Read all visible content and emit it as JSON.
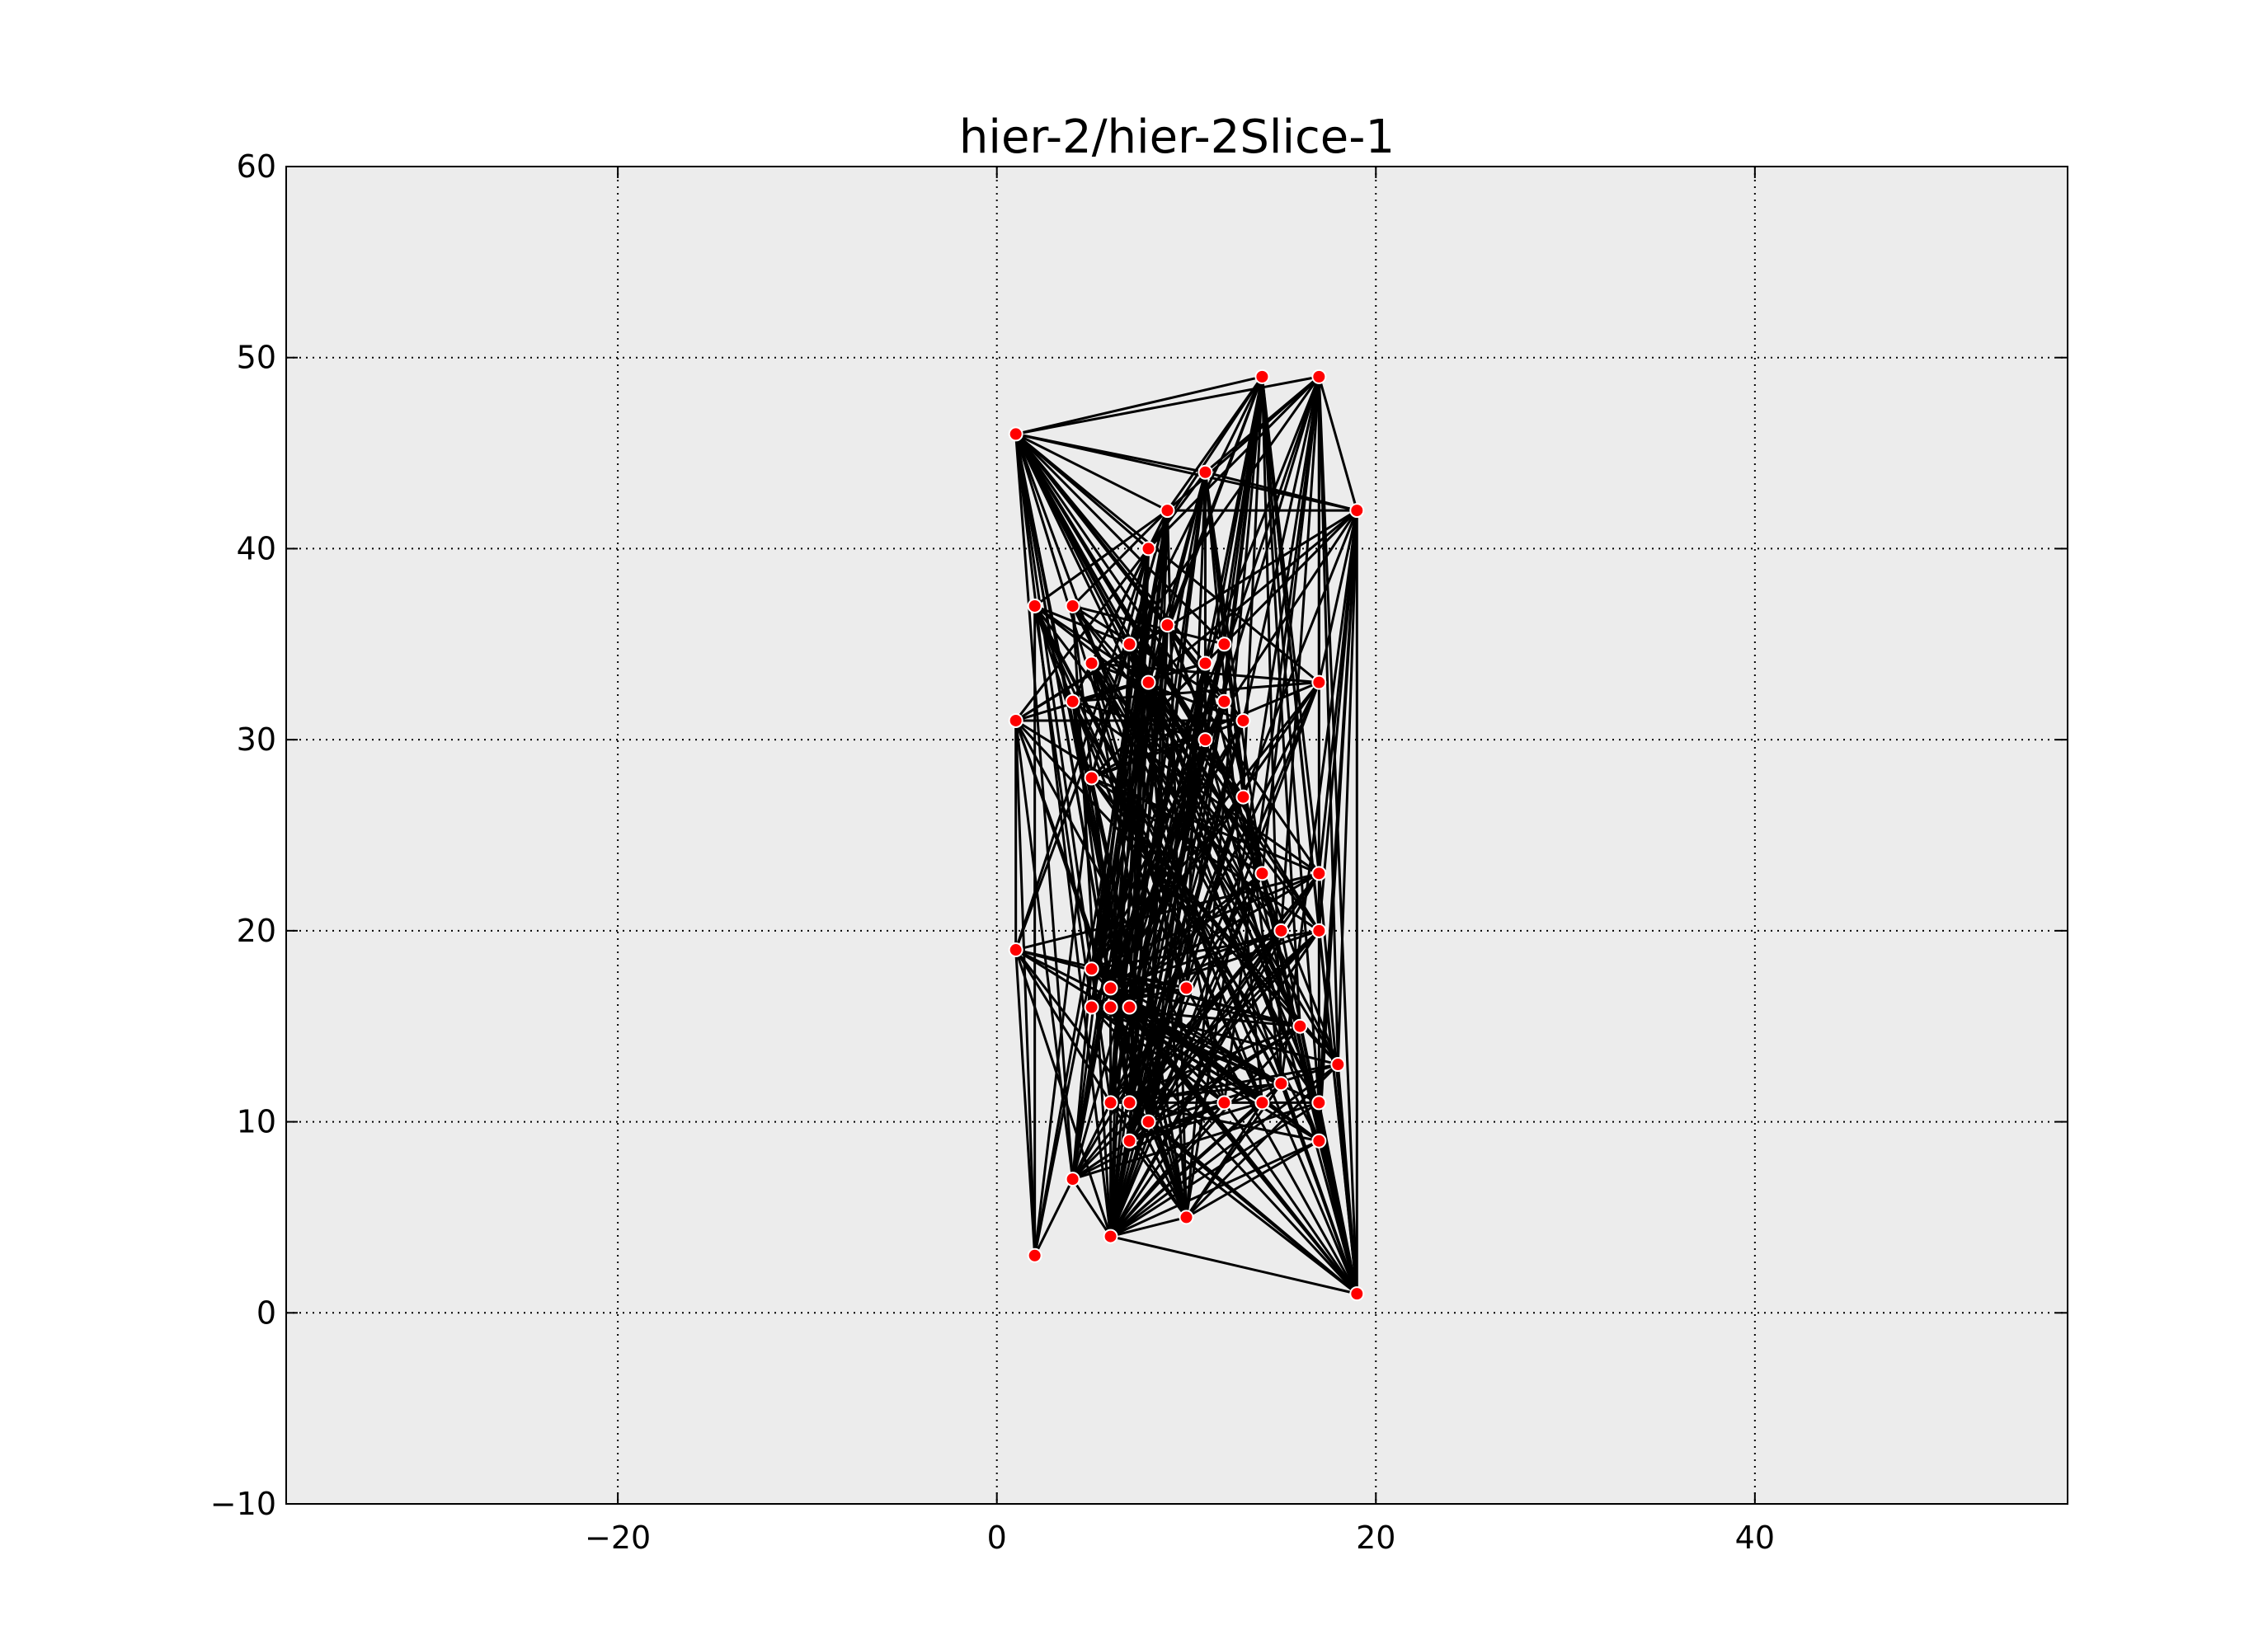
{
  "chart_data": {
    "type": "scatter",
    "title": "hier-2/hier-2Slice-1",
    "xlabel": "",
    "ylabel": "",
    "xlim": [
      -37.5,
      56.5
    ],
    "ylim": [
      -10,
      60
    ],
    "xticks": [
      -20,
      0,
      20,
      40
    ],
    "yticks": [
      -10,
      0,
      10,
      20,
      30,
      40,
      50,
      60
    ],
    "xtick_labels": [
      "−20",
      "0",
      "20",
      "40"
    ],
    "ytick_labels": [
      "−10",
      "0",
      "10",
      "20",
      "30",
      "40",
      "50",
      "60"
    ],
    "grid": true,
    "colors": {
      "background": "#ececec",
      "node": "#ff0000",
      "node_edge": "#ffffff",
      "edge": "#000000"
    },
    "points": [
      {
        "x": 14,
        "y": 49
      },
      {
        "x": 17,
        "y": 49
      },
      {
        "x": 1,
        "y": 46
      },
      {
        "x": 11,
        "y": 44
      },
      {
        "x": 9,
        "y": 42
      },
      {
        "x": 19,
        "y": 42
      },
      {
        "x": 8,
        "y": 40
      },
      {
        "x": 2,
        "y": 37
      },
      {
        "x": 4,
        "y": 37
      },
      {
        "x": 9,
        "y": 36
      },
      {
        "x": 7,
        "y": 35
      },
      {
        "x": 12,
        "y": 35
      },
      {
        "x": 5,
        "y": 34
      },
      {
        "x": 11,
        "y": 34
      },
      {
        "x": 8,
        "y": 33
      },
      {
        "x": 17,
        "y": 33
      },
      {
        "x": 4,
        "y": 32
      },
      {
        "x": 12,
        "y": 32
      },
      {
        "x": 1,
        "y": 31
      },
      {
        "x": 13,
        "y": 31
      },
      {
        "x": 11,
        "y": 30
      },
      {
        "x": 5,
        "y": 28
      },
      {
        "x": 13,
        "y": 27
      },
      {
        "x": 14,
        "y": 23
      },
      {
        "x": 17,
        "y": 23
      },
      {
        "x": 15,
        "y": 20
      },
      {
        "x": 17,
        "y": 20
      },
      {
        "x": 1,
        "y": 19
      },
      {
        "x": 5,
        "y": 18
      },
      {
        "x": 6,
        "y": 17
      },
      {
        "x": 10,
        "y": 17
      },
      {
        "x": 5,
        "y": 16
      },
      {
        "x": 6,
        "y": 16
      },
      {
        "x": 7,
        "y": 16
      },
      {
        "x": 16,
        "y": 15
      },
      {
        "x": 18,
        "y": 13
      },
      {
        "x": 15,
        "y": 12
      },
      {
        "x": 6,
        "y": 11
      },
      {
        "x": 7,
        "y": 11
      },
      {
        "x": 12,
        "y": 11
      },
      {
        "x": 14,
        "y": 11
      },
      {
        "x": 17,
        "y": 11
      },
      {
        "x": 8,
        "y": 10
      },
      {
        "x": 7,
        "y": 9
      },
      {
        "x": 17,
        "y": 9
      },
      {
        "x": 4,
        "y": 7
      },
      {
        "x": 10,
        "y": 5
      },
      {
        "x": 6,
        "y": 4
      },
      {
        "x": 2,
        "y": 3
      },
      {
        "x": 19,
        "y": 1
      }
    ],
    "edges": [
      [
        2,
        0
      ],
      [
        2,
        1
      ],
      [
        2,
        5
      ],
      [
        2,
        3
      ],
      [
        2,
        4
      ],
      [
        2,
        6
      ],
      [
        2,
        9
      ],
      [
        2,
        10
      ],
      [
        2,
        11
      ],
      [
        2,
        13
      ],
      [
        2,
        14
      ],
      [
        2,
        15
      ],
      [
        2,
        17
      ],
      [
        2,
        19
      ],
      [
        2,
        20
      ],
      [
        2,
        22
      ],
      [
        2,
        23
      ],
      [
        2,
        24
      ],
      [
        2,
        25
      ],
      [
        2,
        26
      ],
      [
        2,
        29
      ],
      [
        2,
        30
      ],
      [
        2,
        33
      ],
      [
        2,
        34
      ],
      [
        2,
        35
      ],
      [
        2,
        37
      ],
      [
        2,
        38
      ],
      [
        2,
        40
      ],
      [
        2,
        42
      ],
      [
        2,
        45
      ],
      [
        2,
        47
      ],
      [
        0,
        4
      ],
      [
        0,
        6
      ],
      [
        0,
        9
      ],
      [
        0,
        11
      ],
      [
        0,
        14
      ],
      [
        0,
        17
      ],
      [
        0,
        20
      ],
      [
        0,
        22
      ],
      [
        0,
        24
      ],
      [
        0,
        26
      ],
      [
        0,
        30
      ],
      [
        0,
        34
      ],
      [
        0,
        36
      ],
      [
        0,
        38
      ],
      [
        0,
        41
      ],
      [
        0,
        46
      ],
      [
        0,
        49
      ],
      [
        0,
        10
      ],
      [
        0,
        13
      ],
      [
        1,
        4
      ],
      [
        1,
        5
      ],
      [
        1,
        10
      ],
      [
        1,
        13
      ],
      [
        1,
        15
      ],
      [
        1,
        19
      ],
      [
        1,
        23
      ],
      [
        1,
        25
      ],
      [
        1,
        29
      ],
      [
        1,
        33
      ],
      [
        1,
        35
      ],
      [
        1,
        39
      ],
      [
        1,
        44
      ],
      [
        1,
        46
      ],
      [
        1,
        49
      ],
      [
        1,
        3
      ],
      [
        1,
        6
      ],
      [
        5,
        3
      ],
      [
        5,
        4
      ],
      [
        5,
        11
      ],
      [
        5,
        15
      ],
      [
        5,
        20
      ],
      [
        5,
        24
      ],
      [
        5,
        26
      ],
      [
        5,
        35
      ],
      [
        5,
        41
      ],
      [
        5,
        44
      ],
      [
        5,
        49
      ],
      [
        5,
        14
      ],
      [
        5,
        22
      ],
      [
        5,
        36
      ],
      [
        5,
        18
      ],
      [
        3,
        6
      ],
      [
        3,
        9
      ],
      [
        3,
        14
      ],
      [
        3,
        20
      ],
      [
        3,
        22
      ],
      [
        3,
        23
      ],
      [
        3,
        30
      ],
      [
        3,
        33
      ],
      [
        3,
        36
      ],
      [
        3,
        38
      ],
      [
        3,
        40
      ],
      [
        3,
        45
      ],
      [
        3,
        47
      ],
      [
        4,
        7
      ],
      [
        4,
        8
      ],
      [
        4,
        10
      ],
      [
        4,
        12
      ],
      [
        4,
        16
      ],
      [
        4,
        21
      ],
      [
        4,
        28
      ],
      [
        4,
        31
      ],
      [
        4,
        32
      ],
      [
        4,
        37
      ],
      [
        4,
        42
      ],
      [
        4,
        43
      ],
      [
        4,
        46
      ],
      [
        4,
        48
      ],
      [
        6,
        12
      ],
      [
        6,
        16
      ],
      [
        6,
        21
      ],
      [
        6,
        28
      ],
      [
        6,
        31
      ],
      [
        6,
        32
      ],
      [
        6,
        33
      ],
      [
        6,
        37
      ],
      [
        6,
        38
      ],
      [
        6,
        43
      ],
      [
        6,
        45
      ],
      [
        6,
        47
      ],
      [
        6,
        27
      ],
      [
        6,
        18
      ],
      [
        7,
        10
      ],
      [
        7,
        14
      ],
      [
        7,
        20
      ],
      [
        7,
        25
      ],
      [
        7,
        30
      ],
      [
        7,
        36
      ],
      [
        7,
        40
      ],
      [
        7,
        44
      ],
      [
        7,
        48
      ],
      [
        7,
        31
      ],
      [
        7,
        21
      ],
      [
        8,
        11
      ],
      [
        8,
        17
      ],
      [
        8,
        22
      ],
      [
        8,
        26
      ],
      [
        8,
        34
      ],
      [
        8,
        41
      ],
      [
        8,
        47
      ],
      [
        8,
        38
      ],
      [
        18,
        9
      ],
      [
        18,
        13
      ],
      [
        18,
        19
      ],
      [
        18,
        23
      ],
      [
        18,
        29
      ],
      [
        18,
        35
      ],
      [
        18,
        39
      ],
      [
        18,
        46
      ],
      [
        18,
        27
      ],
      [
        18,
        48
      ],
      [
        18,
        45
      ],
      [
        27,
        10
      ],
      [
        27,
        24
      ],
      [
        27,
        30
      ],
      [
        27,
        34
      ],
      [
        27,
        36
      ],
      [
        27,
        37
      ],
      [
        27,
        42
      ],
      [
        27,
        47
      ],
      [
        27,
        48
      ],
      [
        27,
        40
      ],
      [
        12,
        15
      ],
      [
        12,
        19
      ],
      [
        12,
        23
      ],
      [
        12,
        30
      ],
      [
        12,
        35
      ],
      [
        12,
        41
      ],
      [
        12,
        46
      ],
      [
        12,
        49
      ],
      [
        9,
        28
      ],
      [
        9,
        31
      ],
      [
        9,
        37
      ],
      [
        9,
        42
      ],
      [
        9,
        45
      ],
      [
        9,
        47
      ],
      [
        9,
        25
      ],
      [
        9,
        35
      ],
      [
        10,
        23
      ],
      [
        10,
        26
      ],
      [
        10,
        32
      ],
      [
        10,
        39
      ],
      [
        10,
        44
      ],
      [
        10,
        47
      ],
      [
        10,
        49
      ],
      [
        11,
        21
      ],
      [
        11,
        28
      ],
      [
        11,
        33
      ],
      [
        11,
        38
      ],
      [
        11,
        43
      ],
      [
        11,
        45
      ],
      [
        11,
        47
      ],
      [
        13,
        16
      ],
      [
        13,
        21
      ],
      [
        13,
        29
      ],
      [
        13,
        32
      ],
      [
        13,
        37
      ],
      [
        13,
        42
      ],
      [
        13,
        47
      ],
      [
        13,
        49
      ],
      [
        14,
        25
      ],
      [
        14,
        31
      ],
      [
        14,
        34
      ],
      [
        14,
        38
      ],
      [
        14,
        41
      ],
      [
        14,
        45
      ],
      [
        14,
        46
      ],
      [
        15,
        16
      ],
      [
        15,
        21
      ],
      [
        15,
        28
      ],
      [
        15,
        31
      ],
      [
        15,
        37
      ],
      [
        15,
        43
      ],
      [
        15,
        47
      ],
      [
        15,
        45
      ],
      [
        16,
        20
      ],
      [
        16,
        24
      ],
      [
        16,
        29
      ],
      [
        16,
        33
      ],
      [
        16,
        36
      ],
      [
        16,
        40
      ],
      [
        16,
        46
      ],
      [
        17,
        21
      ],
      [
        17,
        28
      ],
      [
        17,
        32
      ],
      [
        17,
        37
      ],
      [
        17,
        42
      ],
      [
        17,
        47
      ],
      [
        17,
        49
      ],
      [
        19,
        21
      ],
      [
        19,
        28
      ],
      [
        19,
        31
      ],
      [
        19,
        38
      ],
      [
        19,
        43
      ],
      [
        19,
        47
      ],
      [
        20,
        28
      ],
      [
        20,
        32
      ],
      [
        20,
        37
      ],
      [
        20,
        42
      ],
      [
        20,
        47
      ],
      [
        20,
        49
      ],
      [
        21,
        24
      ],
      [
        21,
        26
      ],
      [
        21,
        34
      ],
      [
        21,
        35
      ],
      [
        21,
        41
      ],
      [
        21,
        46
      ],
      [
        22,
        28
      ],
      [
        22,
        31
      ],
      [
        22,
        38
      ],
      [
        22,
        43
      ],
      [
        22,
        47
      ],
      [
        22,
        49
      ],
      [
        23,
        29
      ],
      [
        23,
        32
      ],
      [
        23,
        37
      ],
      [
        23,
        42
      ],
      [
        23,
        47
      ],
      [
        23,
        49
      ],
      [
        24,
        28
      ],
      [
        24,
        31
      ],
      [
        24,
        38
      ],
      [
        24,
        43
      ],
      [
        24,
        47
      ],
      [
        24,
        49
      ],
      [
        24,
        45
      ],
      [
        25,
        29
      ],
      [
        25,
        32
      ],
      [
        25,
        37
      ],
      [
        25,
        42
      ],
      [
        25,
        47
      ],
      [
        25,
        49
      ],
      [
        26,
        28
      ],
      [
        26,
        31
      ],
      [
        26,
        38
      ],
      [
        26,
        43
      ],
      [
        26,
        47
      ],
      [
        26,
        49
      ],
      [
        26,
        45
      ],
      [
        28,
        30
      ],
      [
        28,
        34
      ],
      [
        28,
        36
      ],
      [
        28,
        40
      ],
      [
        28,
        44
      ],
      [
        28,
        49
      ],
      [
        29,
        34
      ],
      [
        29,
        36
      ],
      [
        29,
        40
      ],
      [
        29,
        44
      ],
      [
        29,
        49
      ],
      [
        29,
        46
      ],
      [
        30,
        31
      ],
      [
        30,
        37
      ],
      [
        30,
        42
      ],
      [
        30,
        45
      ],
      [
        30,
        47
      ],
      [
        30,
        49
      ],
      [
        31,
        34
      ],
      [
        31,
        36
      ],
      [
        31,
        39
      ],
      [
        31,
        44
      ],
      [
        31,
        49
      ],
      [
        32,
        35
      ],
      [
        32,
        40
      ],
      [
        32,
        41
      ],
      [
        32,
        46
      ],
      [
        32,
        47
      ],
      [
        33,
        36
      ],
      [
        33,
        39
      ],
      [
        33,
        44
      ],
      [
        33,
        46
      ],
      [
        33,
        49
      ],
      [
        34,
        37
      ],
      [
        34,
        42
      ],
      [
        34,
        45
      ],
      [
        34,
        47
      ],
      [
        34,
        49
      ],
      [
        35,
        38
      ],
      [
        35,
        42
      ],
      [
        35,
        46
      ],
      [
        35,
        47
      ],
      [
        35,
        49
      ],
      [
        36,
        37
      ],
      [
        36,
        43
      ],
      [
        36,
        46
      ],
      [
        36,
        47
      ],
      [
        36,
        49
      ],
      [
        37,
        41
      ],
      [
        37,
        46
      ],
      [
        37,
        49
      ],
      [
        38,
        44
      ],
      [
        38,
        46
      ],
      [
        38,
        49
      ],
      [
        39,
        43
      ],
      [
        39,
        45
      ],
      [
        39,
        47
      ],
      [
        39,
        49
      ],
      [
        40,
        43
      ],
      [
        40,
        46
      ],
      [
        40,
        47
      ],
      [
        41,
        45
      ],
      [
        41,
        47
      ],
      [
        41,
        49
      ],
      [
        42,
        46
      ],
      [
        42,
        47
      ],
      [
        42,
        49
      ],
      [
        43,
        46
      ],
      [
        43,
        47
      ],
      [
        43,
        45
      ],
      [
        44,
        46
      ],
      [
        44,
        47
      ],
      [
        44,
        49
      ],
      [
        45,
        47
      ],
      [
        45,
        48
      ],
      [
        46,
        47
      ],
      [
        47,
        49
      ],
      [
        48,
        21
      ],
      [
        48,
        28
      ],
      [
        45,
        28
      ]
    ]
  }
}
